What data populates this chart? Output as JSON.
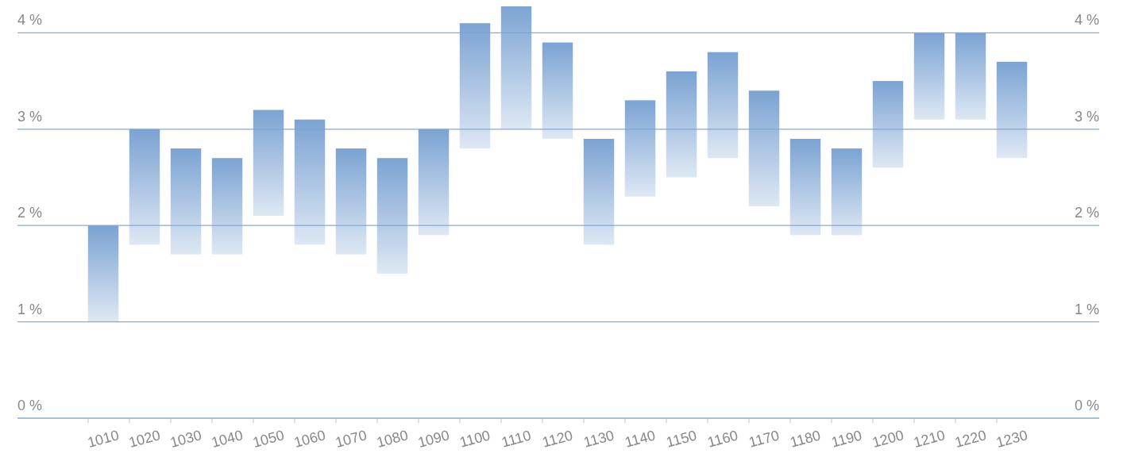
{
  "chart_data": {
    "type": "bar",
    "categories": [
      "1010",
      "1020",
      "1030",
      "1040",
      "1050",
      "1060",
      "1070",
      "1080",
      "1090",
      "1100",
      "1110",
      "1120",
      "1130",
      "1140",
      "1150",
      "1160",
      "1170",
      "1180",
      "1190",
      "1200",
      "1210",
      "1220",
      "1230"
    ],
    "base": [
      1.0,
      1.8,
      1.7,
      1.7,
      2.1,
      1.8,
      1.7,
      1.5,
      1.9,
      2.8,
      3.0,
      2.9,
      1.8,
      2.3,
      2.5,
      2.7,
      2.2,
      1.9,
      1.9,
      2.6,
      3.1,
      3.1,
      2.7
    ],
    "values": [
      1.0,
      1.2,
      1.1,
      1.0,
      1.1,
      1.3,
      1.1,
      1.2,
      1.1,
      1.3,
      1.3,
      1.0,
      1.1,
      1.0,
      1.1,
      1.1,
      1.2,
      1.0,
      0.9,
      0.9,
      0.9,
      0.9,
      1.0
    ],
    "color": "#7ba3d3",
    "ylim": [
      0,
      4.3
    ],
    "yticks": [
      {
        "value": 0,
        "label": "0 %"
      },
      {
        "value": 1,
        "label": "1 %"
      },
      {
        "value": 2,
        "label": "2 %"
      },
      {
        "value": 3,
        "label": "3 %"
      },
      {
        "value": 4,
        "label": "4 %"
      }
    ],
    "y2lim": [
      0,
      4.3
    ],
    "y2ticks": [
      {
        "value": 0,
        "label": "0 %"
      },
      {
        "value": 1,
        "label": "1 %"
      },
      {
        "value": 2,
        "label": "2 %"
      },
      {
        "value": 3,
        "label": "3 %"
      },
      {
        "value": 4,
        "label": "4 %"
      }
    ],
    "grid": "y"
  }
}
